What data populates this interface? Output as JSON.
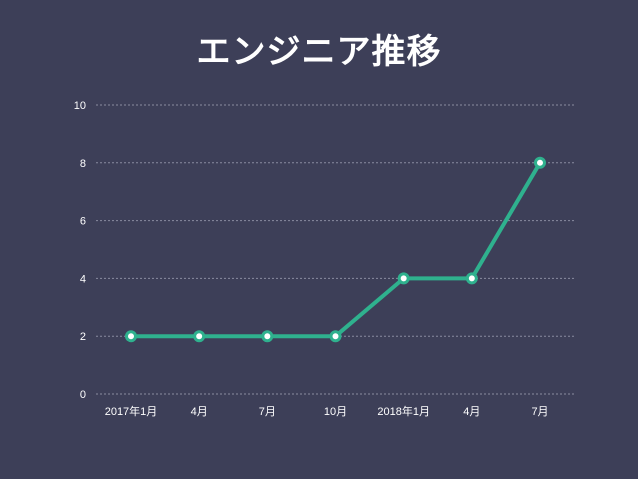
{
  "chart_data": {
    "type": "line",
    "title": "エンジニア推移",
    "xlabel": "",
    "ylabel": "",
    "categories": [
      "2017年1月",
      "4月",
      "7月",
      "10月",
      "2018年1月",
      "4月",
      "7月"
    ],
    "series": [
      {
        "values": [
          2,
          2,
          2,
          2,
          4,
          4,
          8
        ]
      }
    ],
    "ylim": [
      0,
      10
    ],
    "yticks": [
      "0",
      "2",
      "4",
      "6",
      "8",
      "10"
    ],
    "grid": true,
    "legend": "none"
  },
  "colors": {
    "background": "#3d3f58",
    "line": "#2fb18e",
    "marker_fill": "#ffffff",
    "text": "#ffffff"
  }
}
